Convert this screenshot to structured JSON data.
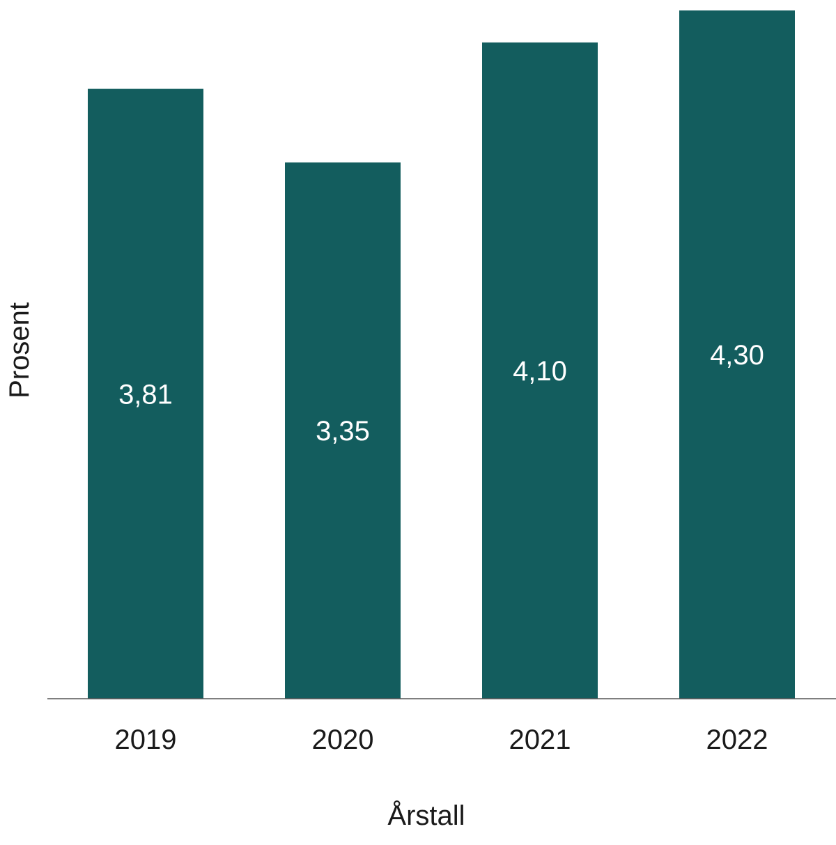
{
  "chart_data": {
    "type": "bar",
    "categories": [
      "2019",
      "2020",
      "2021",
      "2022"
    ],
    "values": [
      3.81,
      3.35,
      4.1,
      4.3
    ],
    "value_labels": [
      "3,81",
      "3,35",
      "4,10",
      "4,30"
    ],
    "title": "",
    "xlabel": "Årstall",
    "ylabel": "Prosent",
    "ylim": [
      0,
      4.3
    ],
    "grid": false,
    "legend": "none"
  },
  "colors": {
    "bar": "#135d5e",
    "axis": "#555555",
    "value_label": "#ffffff",
    "text": "#1a1a1a"
  }
}
